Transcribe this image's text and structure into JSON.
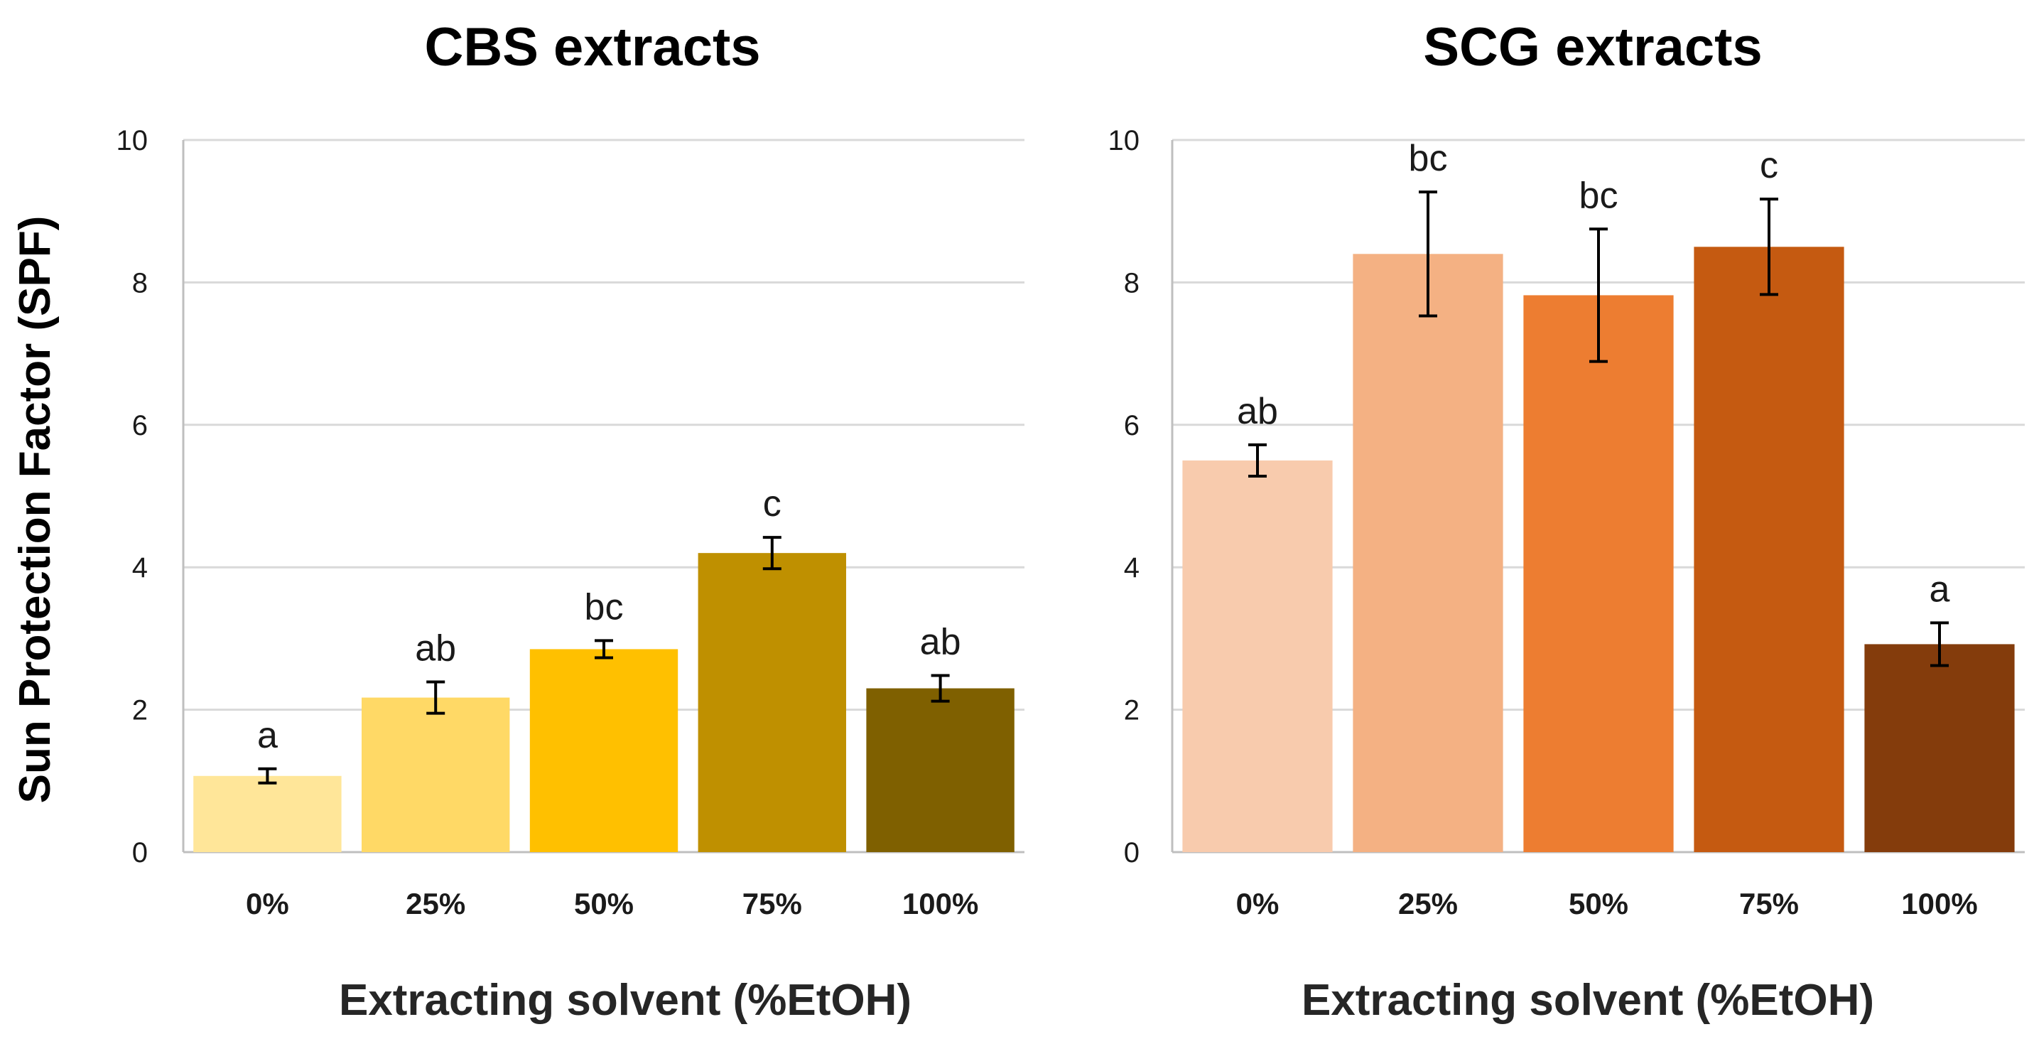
{
  "ylabel": "Sun Protection Factor (SPF)",
  "chart_data": [
    {
      "type": "bar",
      "title": "CBS extracts",
      "xlabel": "Extracting solvent (%EtOH)",
      "ylabel": "Sun Protection Factor (SPF)",
      "ylim": [
        0,
        10
      ],
      "yticks": [
        0,
        2,
        4,
        6,
        8,
        10
      ],
      "grid": true,
      "categories": [
        "0%",
        "25%",
        "50%",
        "75%",
        "100%"
      ],
      "values": [
        1.07,
        2.17,
        2.85,
        4.2,
        2.3
      ],
      "errors": [
        0.1,
        0.22,
        0.12,
        0.22,
        0.18
      ],
      "significance": [
        "a",
        "ab",
        "bc",
        "c",
        "ab"
      ],
      "colors": [
        "#FFE699",
        "#FFD966",
        "#FFC000",
        "#BF9000",
        "#7F6000"
      ]
    },
    {
      "type": "bar",
      "title": "SCG extracts",
      "xlabel": "Extracting solvent (%EtOH)",
      "ylabel": "",
      "ylim": [
        0,
        10
      ],
      "yticks": [
        0,
        2,
        4,
        6,
        8,
        10
      ],
      "grid": true,
      "categories": [
        "0%",
        "25%",
        "50%",
        "75%",
        "100%"
      ],
      "values": [
        5.5,
        8.4,
        7.82,
        8.5,
        2.92
      ],
      "errors": [
        0.22,
        0.87,
        0.93,
        0.67,
        0.3
      ],
      "significance": [
        "ab",
        "bc",
        "bc",
        "c",
        "a"
      ],
      "colors": [
        "#F8CBAD",
        "#F4B183",
        "#ED7D31",
        "#C55A11",
        "#843C0C"
      ]
    }
  ]
}
